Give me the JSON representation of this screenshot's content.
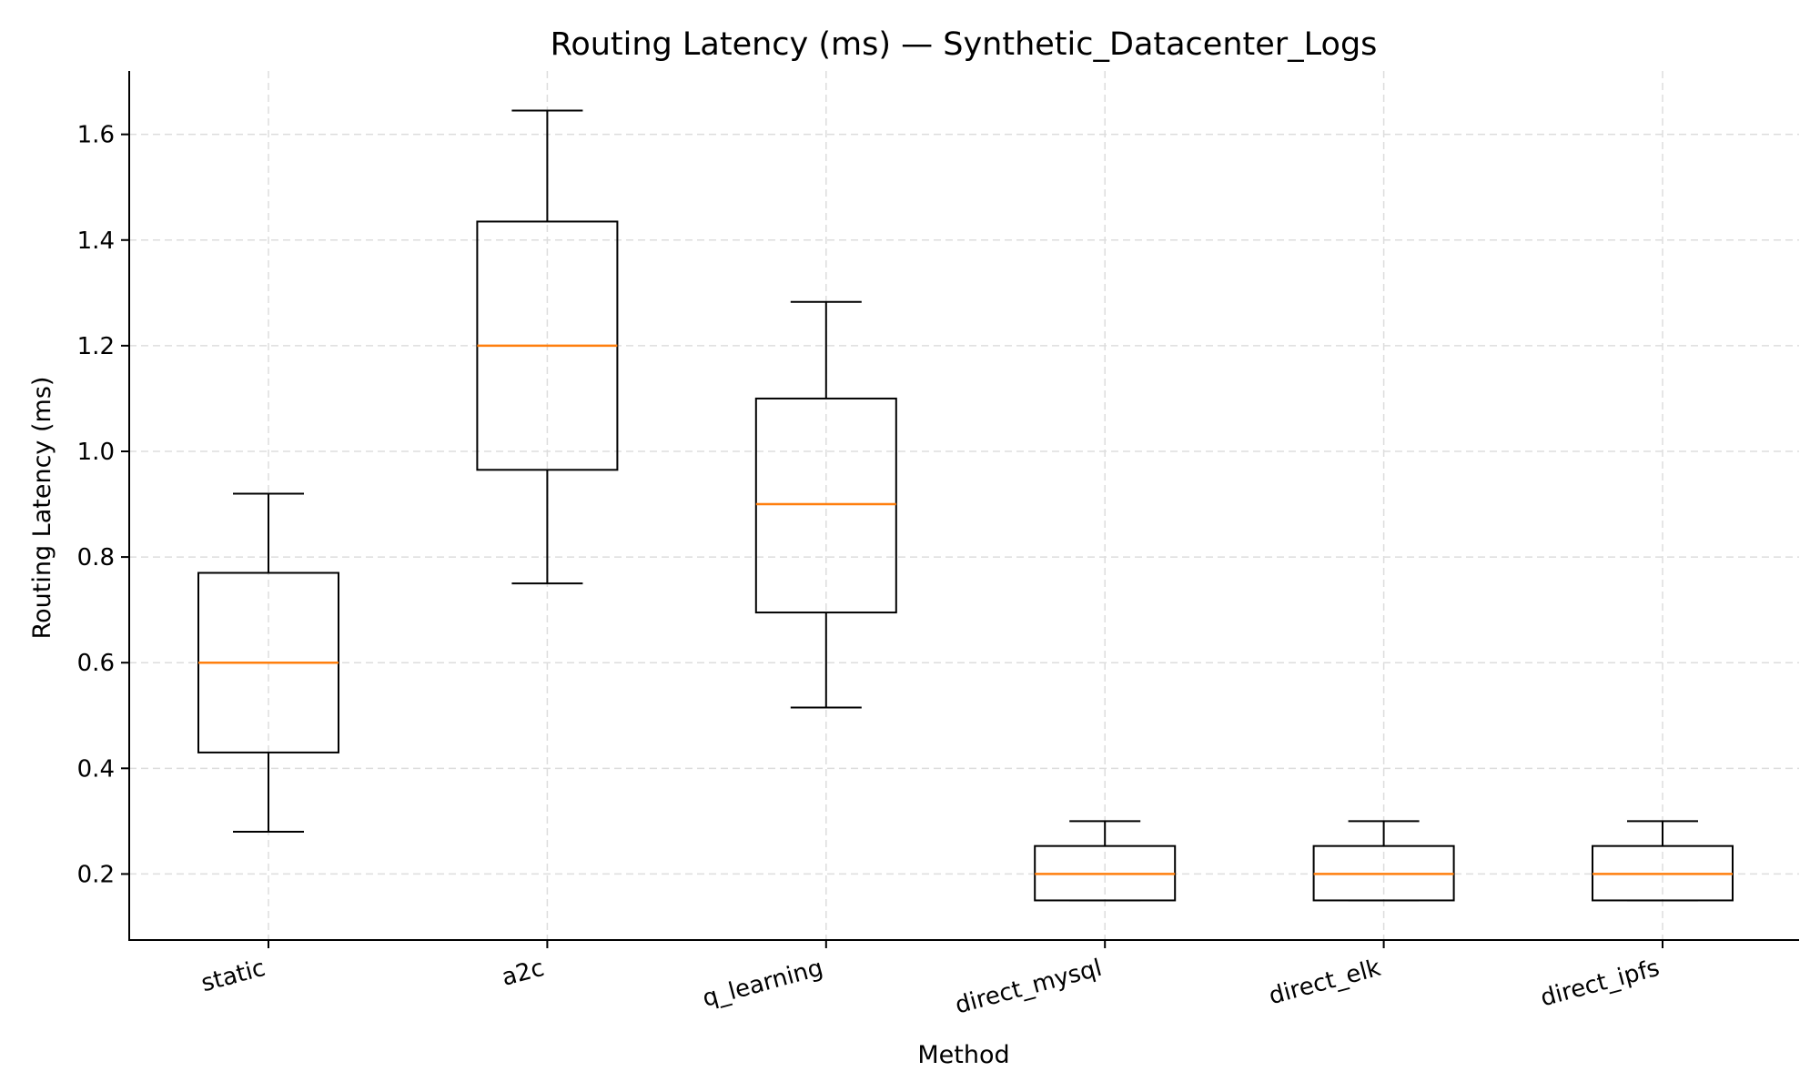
{
  "chart_data": {
    "type": "box",
    "title": "Routing Latency (ms) — Synthetic_Datacenter_Logs",
    "xlabel": "Method",
    "ylabel": "Routing Latency (ms)",
    "ylim": [
      0.075,
      1.72
    ],
    "yticks": [
      0.2,
      0.4,
      0.6,
      0.8,
      1.0,
      1.2,
      1.4,
      1.6
    ],
    "ytick_labels": [
      "0.2",
      "0.4",
      "0.6",
      "0.8",
      "1.0",
      "1.2",
      "1.4",
      "1.6"
    ],
    "grid": true,
    "colors": {
      "box": "#000000",
      "median": "#ff7f0e",
      "grid": "#dddddd"
    },
    "categories": [
      "static",
      "a2c",
      "q_learning",
      "direct_mysql",
      "direct_elk",
      "direct_ipfs"
    ],
    "boxes": [
      {
        "label": "static",
        "whisker_low": 0.28,
        "q1": 0.43,
        "median": 0.6,
        "q3": 0.77,
        "whisker_high": 0.92
      },
      {
        "label": "a2c",
        "whisker_low": 0.75,
        "q1": 0.965,
        "median": 1.2,
        "q3": 1.435,
        "whisker_high": 1.645
      },
      {
        "label": "q_learning",
        "whisker_low": 0.515,
        "q1": 0.695,
        "median": 0.9,
        "q3": 1.1,
        "whisker_high": 1.283
      },
      {
        "label": "direct_mysql",
        "whisker_low": 0.15,
        "q1": 0.15,
        "median": 0.2,
        "q3": 0.253,
        "whisker_high": 0.3
      },
      {
        "label": "direct_elk",
        "whisker_low": 0.15,
        "q1": 0.15,
        "median": 0.2,
        "q3": 0.253,
        "whisker_high": 0.3
      },
      {
        "label": "direct_ipfs",
        "whisker_low": 0.15,
        "q1": 0.15,
        "median": 0.2,
        "q3": 0.253,
        "whisker_high": 0.3
      }
    ]
  }
}
